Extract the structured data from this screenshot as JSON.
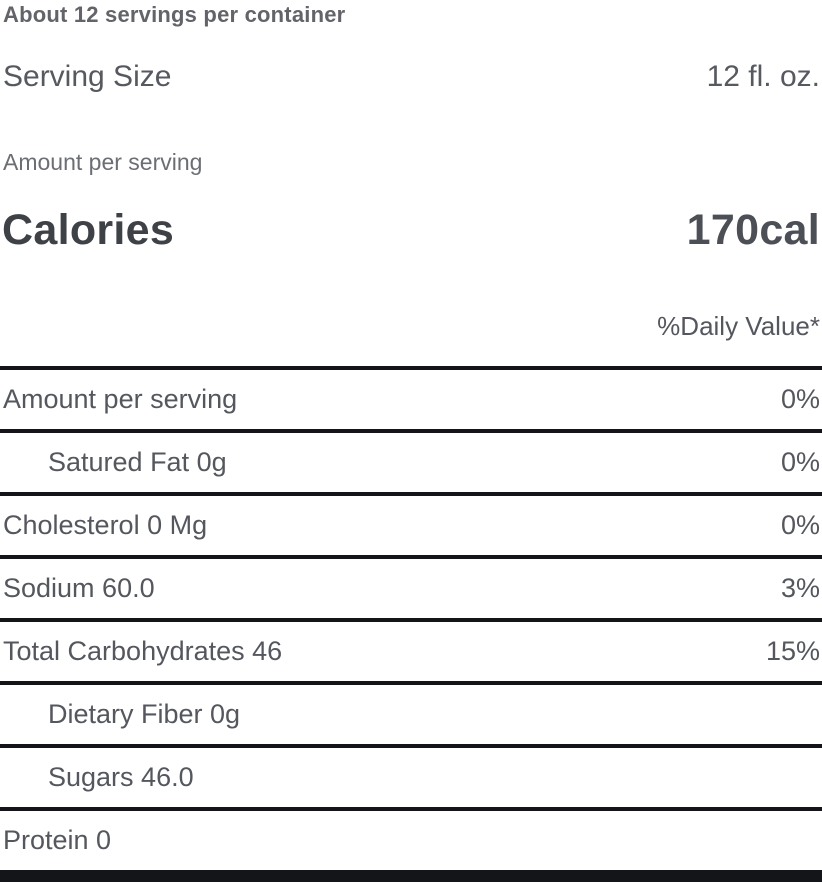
{
  "header": {
    "servings_note": "About 12 servings per container",
    "serving_size_label": "Serving Size",
    "serving_size_value": "12 fl. oz.",
    "amount_per_serving_label": "Amount per serving",
    "calories_label": "Calories",
    "calories_value": "170cal",
    "daily_value_header": "%Daily Value*"
  },
  "nutrients": [
    {
      "label": "Amount per serving",
      "value": "0%",
      "indent": false
    },
    {
      "label": "Satured Fat 0g",
      "value": "0%",
      "indent": true
    },
    {
      "label": "Cholesterol 0 Mg",
      "value": "0%",
      "indent": false
    },
    {
      "label": "Sodium 60.0",
      "value": "3%",
      "indent": false
    },
    {
      "label": "Total Carbohydrates 46",
      "value": "15%",
      "indent": false
    },
    {
      "label": "Dietary Fiber 0g",
      "value": "",
      "indent": true
    },
    {
      "label": "Sugars 46.0",
      "value": "",
      "indent": true
    },
    {
      "label": "Protein 0",
      "value": "",
      "indent": false
    }
  ],
  "colors": {
    "background": "#ffffff",
    "rule": "#141519",
    "text_primary": "#54575d",
    "text_bold_dark": "#3e4146",
    "text_muted": "#6b6e73"
  }
}
